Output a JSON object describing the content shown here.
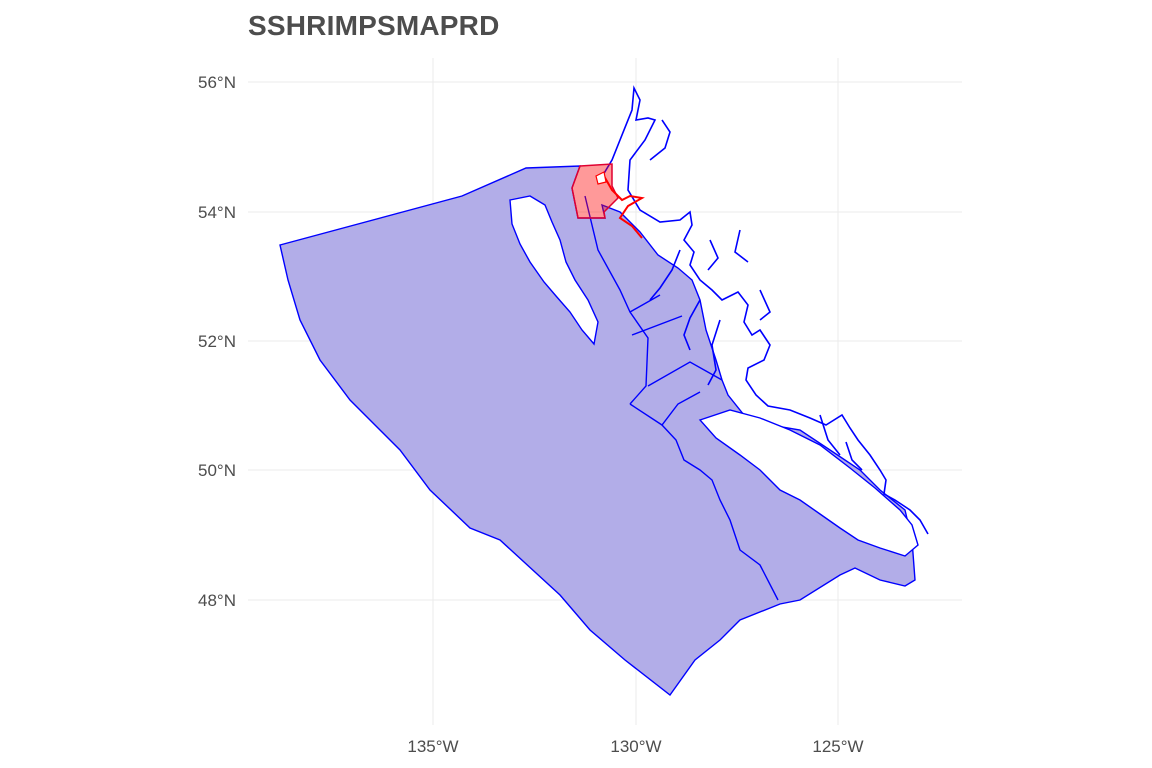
{
  "map": {
    "title": "SSHRIMPSMAPRD",
    "axes": {
      "y_ticks": [
        "56°N",
        "54°N",
        "52°N",
        "50°N",
        "48°N"
      ],
      "x_ticks": [
        "135°W",
        "130°W",
        "125°W"
      ]
    },
    "layers": [
      {
        "name": "management-area",
        "fill": "#0000cc",
        "fill_opacity": 0.3,
        "stroke": "#0000ff"
      },
      {
        "name": "coastline",
        "stroke": "#0000ff"
      },
      {
        "name": "highlighted-region",
        "fill": "#ff0000",
        "fill_opacity": 0.4,
        "stroke": "#ff0000"
      }
    ],
    "grid": true,
    "colors": {
      "area_fill": "#b2ade8",
      "outline": "#0000ff",
      "highlight": "#ff0000",
      "grid": "#ebebeb",
      "text": "#4d4d4d"
    }
  }
}
